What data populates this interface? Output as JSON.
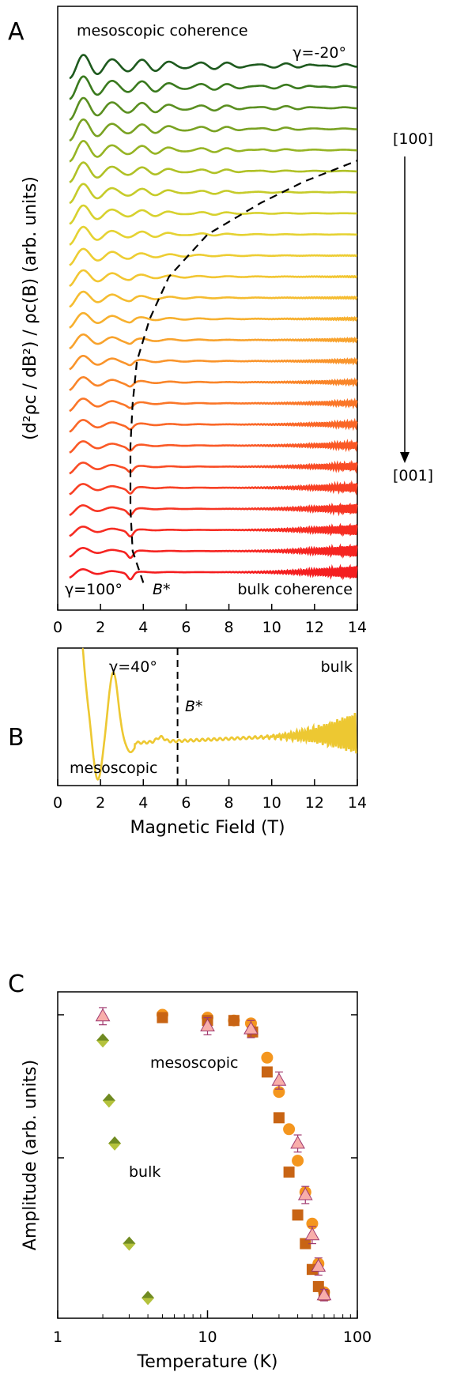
{
  "chart_data": [
    {
      "panel": "A",
      "type": "line",
      "ylabel": "(d²ρc / dB²) / ρc(B) (arb. units)",
      "xlim": [
        0,
        14
      ],
      "xticks": [
        "0",
        "2",
        "4",
        "6",
        "8",
        "10",
        "12",
        "14"
      ],
      "annotations": {
        "top_left": "mesoscopic coherence",
        "top_right": "γ=-20°",
        "bottom_left": "γ=100°",
        "bottom_right": "bulk coherence",
        "bstar": "B*",
        "arrow_top": "[100]",
        "arrow_bottom": "[001]"
      },
      "dashed_boundary": {
        "x": [
          4.0,
          3.5,
          3.4,
          3.4,
          3.5,
          3.7,
          4.3,
          5.2,
          7.0,
          9.5,
          11.5,
          14.0
        ],
        "trace_index": [
          24.5,
          23,
          21,
          18,
          16,
          14,
          12,
          10,
          8,
          6.5,
          5.5,
          4.5
        ]
      },
      "traces": {
        "count": 25,
        "gamma_start": -20,
        "gamma_end": 100,
        "colors": [
          "#1e5a1e",
          "#3a7a1e",
          "#5a8f20",
          "#79a222",
          "#96b424",
          "#b0c126",
          "#c6cb2a",
          "#d7d12e",
          "#e5d232",
          "#edcd33",
          "#f2c632",
          "#f5bc30",
          "#f7b02e",
          "#f8a22c",
          "#f9942b",
          "#f98529",
          "#fa7628",
          "#fa6727",
          "#fa5926",
          "#f94c25",
          "#f84024",
          "#f73523",
          "#f62c22",
          "#f52421",
          "#f41e20"
        ]
      }
    },
    {
      "panel": "B",
      "type": "line",
      "xlabel": "Magnetic Field (T)",
      "xlim": [
        0,
        14
      ],
      "xticks": [
        "0",
        "2",
        "4",
        "6",
        "8",
        "10",
        "12",
        "14"
      ],
      "bstar_x": 5.6,
      "color": "#edc832",
      "annotations": {
        "gamma": "γ=40°",
        "left": "mesoscopic",
        "right": "bulk",
        "bstar": "B*"
      }
    },
    {
      "panel": "C",
      "type": "scatter",
      "xlabel": "Temperature (K)",
      "ylabel": "Amplitude (arb. units)",
      "xscale": "log",
      "xlim": [
        1,
        100
      ],
      "xticks": [
        "1",
        "10",
        "100"
      ],
      "ylim": [
        0,
        1.05
      ],
      "annotations": {
        "mesoscopic": "mesoscopic",
        "bulk": "bulk"
      },
      "series": [
        {
          "marker": "circle",
          "color": "#f4961e",
          "x": [
            5.0,
            10.0,
            15.0,
            19.5,
            25.0,
            30.0,
            35.0,
            40.0,
            45.0,
            50.0,
            55.0,
            60.0
          ],
          "y": [
            1.0,
            0.99,
            0.98,
            0.97,
            0.85,
            0.73,
            0.6,
            0.49,
            0.38,
            0.27,
            0.13,
            0.03
          ]
        },
        {
          "marker": "square",
          "color": "#c86414",
          "x": [
            5.0,
            10.0,
            15.0,
            20.0,
            25.0,
            30.0,
            35.0,
            40.0,
            45.0,
            50.0,
            55.0,
            60.0
          ],
          "y": [
            0.99,
            0.98,
            0.98,
            0.94,
            0.8,
            0.64,
            0.45,
            0.3,
            0.2,
            0.11,
            0.05,
            0.02
          ]
        },
        {
          "marker": "triangle",
          "color": "#f8aeaa",
          "x": [
            2.0,
            10.0,
            19.5,
            30.0,
            40.0,
            45.0,
            50.0,
            55.0,
            60.0
          ],
          "y": [
            0.995,
            0.96,
            0.95,
            0.77,
            0.55,
            0.37,
            0.23,
            0.12,
            0.02
          ],
          "err": [
            0.03,
            0.03,
            0.03,
            0.03,
            0.03,
            0.03,
            0.03,
            0.03,
            0.02
          ]
        },
        {
          "marker": "diamond",
          "color": "#b4c23c",
          "x": [
            2.0,
            2.2,
            2.4,
            3.0,
            4.0
          ],
          "y": [
            0.91,
            0.7,
            0.55,
            0.2,
            0.01
          ]
        }
      ]
    }
  ]
}
